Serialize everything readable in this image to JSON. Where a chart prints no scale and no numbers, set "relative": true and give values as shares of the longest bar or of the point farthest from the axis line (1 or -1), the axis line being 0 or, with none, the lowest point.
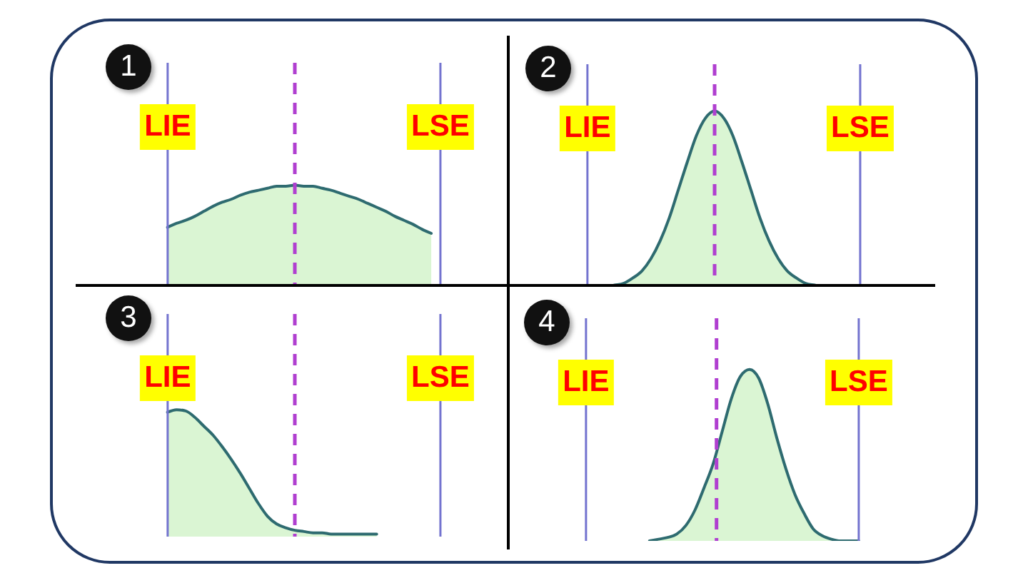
{
  "chart_data": [
    {
      "type": "area",
      "annotations": [
        "1"
      ],
      "relative": true,
      "color": "#daf5d3",
      "categories": [
        null,
        null,
        null,
        null,
        null,
        null,
        null,
        null,
        null,
        null,
        null,
        null,
        null,
        null,
        null,
        null,
        null,
        null,
        null,
        null,
        null,
        null,
        null,
        null,
        null,
        null,
        null,
        null,
        null,
        null,
        null,
        null,
        null,
        null,
        null,
        null,
        null,
        null,
        null,
        null,
        null,
        null,
        null,
        null,
        null,
        null,
        null
      ],
      "values": [
        null,
        null,
        null,
        null,
        null,
        null,
        null,
        null,
        null,
        0.58,
        0.62,
        0.65,
        0.69,
        0.74,
        0.79,
        0.83,
        0.86,
        0.9,
        0.93,
        0.95,
        0.97,
        0.99,
        0.99,
        1,
        0.99,
        0.99,
        0.97,
        0.95,
        0.92,
        0.89,
        0.86,
        0.82,
        0.78,
        0.74,
        0.69,
        0.65,
        0.61,
        0.56,
        0.52,
        null,
        null,
        null,
        null,
        null,
        null,
        null,
        null
      ],
      "ref_lines": [
        {
          "axis": "x",
          "label": "LIE",
          "color": "#7373cf"
        },
        {
          "axis": "x",
          "color": "#b03fd0",
          "line_style": "dashed"
        },
        {
          "axis": "x",
          "label": "LSE",
          "color": "#7373cf"
        }
      ]
    },
    {
      "type": "area",
      "annotations": [
        "2"
      ],
      "relative": true,
      "color": "#daf5d3",
      "categories": [
        null,
        null,
        null,
        null,
        null,
        null,
        null,
        null,
        null,
        null,
        null,
        null,
        null,
        null,
        null,
        null,
        null,
        null,
        null,
        null,
        null,
        null,
        null,
        null,
        null,
        null,
        null,
        null,
        null,
        null,
        null,
        null,
        null,
        null,
        null,
        null,
        null,
        null,
        null,
        null,
        null,
        null,
        null,
        null,
        null,
        null,
        null
      ],
      "values": [
        null,
        null,
        null,
        null,
        null,
        null,
        null,
        null,
        null,
        0,
        0,
        0,
        0.01,
        0.02,
        0.05,
        0.09,
        0.16,
        0.26,
        0.39,
        0.55,
        0.71,
        0.86,
        0.96,
        1,
        0.96,
        0.86,
        0.71,
        0.55,
        0.39,
        0.26,
        0.16,
        0.09,
        0.05,
        0.02,
        0.01,
        0,
        0,
        0,
        0,
        null,
        null,
        null,
        null,
        null,
        null,
        null,
        null
      ],
      "ref_lines": [
        {
          "axis": "x",
          "label": "LIE",
          "color": "#7373cf"
        },
        {
          "axis": "x",
          "color": "#b03fd0",
          "line_style": "dashed"
        },
        {
          "axis": "x",
          "label": "LSE",
          "color": "#7373cf"
        }
      ]
    },
    {
      "type": "area",
      "annotations": [
        "3"
      ],
      "relative": true,
      "color": "#daf5d3",
      "categories": [
        null,
        null,
        null,
        null,
        null,
        null,
        null,
        null,
        null,
        null,
        null,
        null,
        null,
        null,
        null,
        null,
        null,
        null,
        null,
        null,
        null,
        null,
        null,
        null,
        null,
        null,
        null,
        null,
        null,
        null,
        null,
        null,
        null,
        null,
        null,
        null,
        null,
        null,
        null,
        null,
        null,
        null,
        null,
        null,
        null,
        null,
        null
      ],
      "values": [
        null,
        null,
        null,
        null,
        null,
        null,
        null,
        null,
        null,
        0.98,
        1,
        0.99,
        0.94,
        0.87,
        0.8,
        0.71,
        0.61,
        0.5,
        0.38,
        0.26,
        0.16,
        0.1,
        0.07,
        0.05,
        0.04,
        0.03,
        0.03,
        0.02,
        0.02,
        0.02,
        0.02,
        0.02,
        0.02,
        null,
        null,
        null,
        null,
        null,
        null,
        null,
        null,
        null,
        null,
        null,
        null,
        null,
        null
      ],
      "ref_lines": [
        {
          "axis": "x",
          "label": "LIE",
          "color": "#7373cf"
        },
        {
          "axis": "x",
          "color": "#b03fd0",
          "line_style": "dashed"
        },
        {
          "axis": "x",
          "label": "LSE",
          "color": "#7373cf"
        }
      ]
    },
    {
      "type": "area",
      "annotations": [
        "4"
      ],
      "relative": true,
      "color": "#daf5d3",
      "categories": [
        null,
        null,
        null,
        null,
        null,
        null,
        null,
        null,
        null,
        null,
        null,
        null,
        null,
        null,
        null,
        null,
        null,
        null,
        null,
        null,
        null,
        null,
        null,
        null,
        null,
        null,
        null,
        null,
        null,
        null,
        null,
        null,
        null,
        null,
        null,
        null,
        null,
        null,
        null,
        null,
        null,
        null,
        null,
        null,
        null,
        null,
        null
      ],
      "values": [
        null,
        null,
        null,
        null,
        null,
        null,
        null,
        null,
        null,
        null,
        null,
        null,
        null,
        null,
        null,
        null,
        0,
        0.01,
        0.02,
        0.04,
        0.09,
        0.18,
        0.31,
        0.45,
        0.64,
        0.83,
        0.96,
        1,
        0.95,
        0.8,
        0.6,
        0.42,
        0.27,
        0.16,
        0.07,
        0.03,
        0.01,
        0,
        0,
        0,
        null,
        null,
        null,
        null,
        null,
        null,
        null
      ],
      "ref_lines": [
        {
          "axis": "x",
          "label": "LIE",
          "color": "#7373cf"
        },
        {
          "axis": "x",
          "color": "#b03fd0",
          "line_style": "dashed"
        },
        {
          "axis": "x",
          "label": "LSE",
          "color": "#7373cf"
        }
      ]
    }
  ]
}
